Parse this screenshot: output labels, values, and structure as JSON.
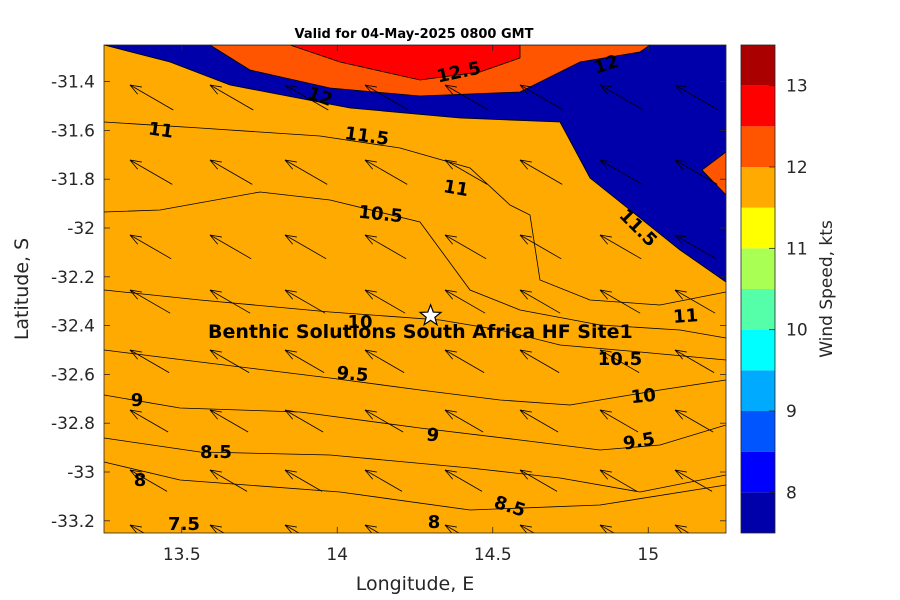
{
  "title": "Valid for 04-May-2025 0800 GMT",
  "chart_data": {
    "type": "heatmap",
    "subtype": "filled-contour with wind vectors",
    "title": "Valid for 04-May-2025 0800 GMT",
    "xlabel": "Longitude, E",
    "ylabel": "Latitude, S",
    "xlim": [
      13.25,
      15.25
    ],
    "ylim": [
      -33.25,
      -31.25
    ],
    "xticks": [
      "13.5",
      "14",
      "14.5",
      "15"
    ],
    "yticks": [
      "-31.4",
      "-31.6",
      "-31.8",
      "-32",
      "-32.2",
      "-32.4",
      "-32.6",
      "-32.8",
      "-33",
      "-33.2"
    ],
    "colorbar": {
      "label": "Wind Speed, kts",
      "range": [
        7.5,
        13.5
      ],
      "levels": [
        7.5,
        8,
        8.5,
        9,
        9.5,
        10,
        10.5,
        11,
        11.5,
        12,
        12.5,
        13,
        13.5
      ],
      "colors": [
        "#0000aa",
        "#0000ff",
        "#0055ff",
        "#00aaff",
        "#00ffff",
        "#55ffaa",
        "#aaff55",
        "#ffff00",
        "#ffaa00",
        "#ff5500",
        "#ff0000",
        "#aa0000"
      ],
      "ticks": [
        "8",
        "9",
        "10",
        "11",
        "12",
        "13"
      ]
    },
    "contour_labels": [
      "12.5",
      "12",
      "12",
      "11",
      "11.5",
      "11",
      "11.5",
      "10.5",
      "10",
      "11",
      "10.5",
      "9.5",
      "10",
      "9",
      "9",
      "9.5",
      "8.5",
      "8",
      "8.5",
      "8",
      "7.5"
    ],
    "wind_direction": "from the east-southeast (arrows pointing west-northwest)",
    "site": {
      "name": "Benthic Solutions South Africa HF Site1",
      "lon": 14.3,
      "lat": -32.36,
      "marker": "star"
    }
  }
}
